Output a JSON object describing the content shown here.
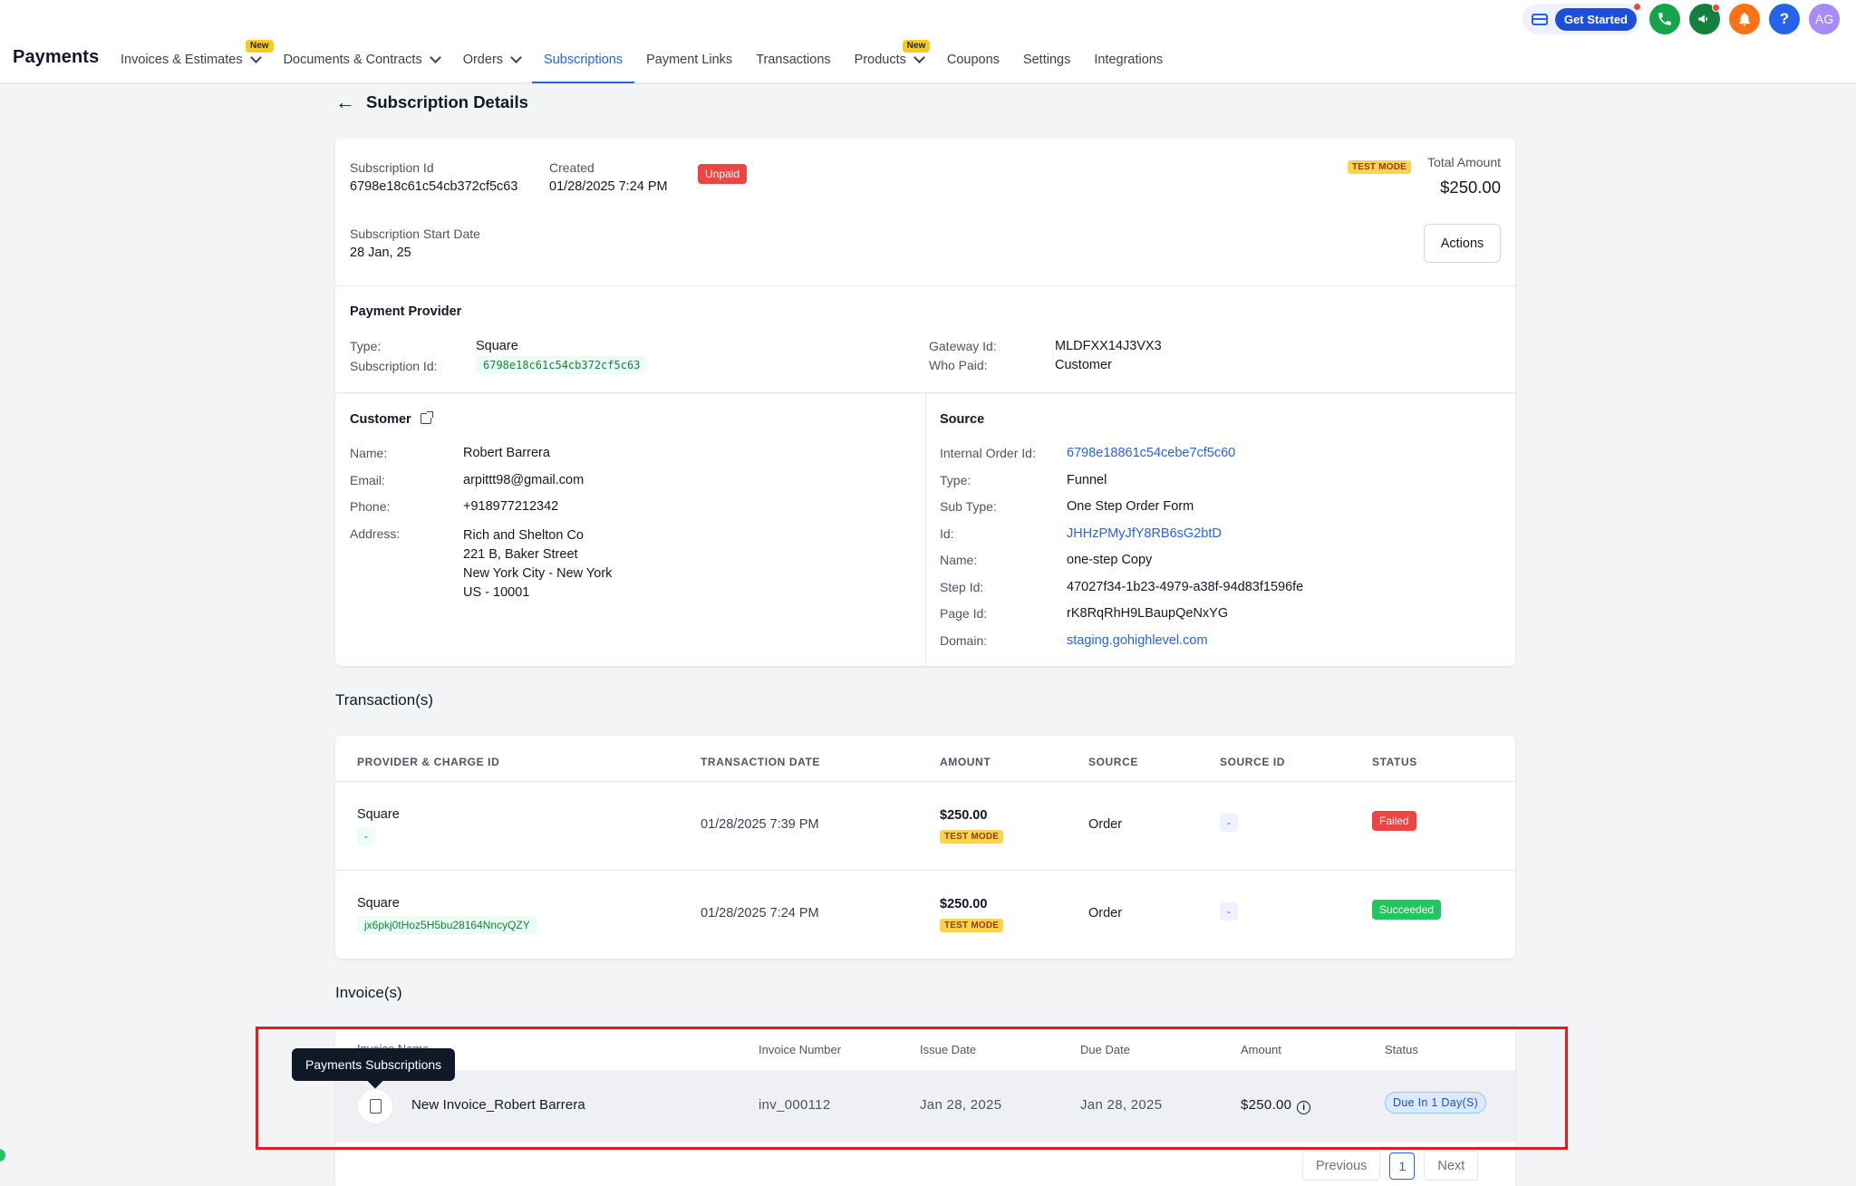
{
  "header": {
    "brand": "Payments",
    "nav": [
      {
        "label": "Invoices & Estimates",
        "badge": "New",
        "dropdown": true,
        "active": false
      },
      {
        "label": "Documents & Contracts",
        "badge": "",
        "dropdown": true,
        "active": false
      },
      {
        "label": "Orders",
        "badge": "",
        "dropdown": true,
        "active": false
      },
      {
        "label": "Subscriptions",
        "badge": "",
        "dropdown": false,
        "active": true
      },
      {
        "label": "Payment Links",
        "badge": "",
        "dropdown": false,
        "active": false
      },
      {
        "label": "Transactions",
        "badge": "",
        "dropdown": false,
        "active": false
      },
      {
        "label": "Products",
        "badge": "New",
        "dropdown": true,
        "active": false
      },
      {
        "label": "Coupons",
        "badge": "",
        "dropdown": false,
        "active": false
      },
      {
        "label": "Settings",
        "badge": "",
        "dropdown": false,
        "active": false
      },
      {
        "label": "Integrations",
        "badge": "",
        "dropdown": false,
        "active": false
      }
    ],
    "get_started": "Get Started",
    "help_glyph": "?",
    "avatar_initials": "AG",
    "icons": [
      "credit-card-icon",
      "phone-icon",
      "megaphone-icon",
      "bell-icon",
      "help-icon"
    ]
  },
  "page": {
    "back_glyph": "←",
    "title": "Subscription Details"
  },
  "summary": {
    "subscription_id_label": "Subscription Id",
    "subscription_id": "6798e18c61c54cb372cf5c63",
    "created_label": "Created",
    "created": "01/28/2025 7:24 PM",
    "status": "Unpaid",
    "test_mode": "TEST MODE",
    "total_amount_label": "Total Amount",
    "total_amount": "$250.00",
    "start_date_label": "Subscription Start Date",
    "start_date": "28 Jan, 25",
    "actions_label": "Actions"
  },
  "provider": {
    "heading": "Payment Provider",
    "type_label": "Type:",
    "type": "Square",
    "sub_id_label": "Subscription Id:",
    "sub_id": "6798e18c61c54cb372cf5c63",
    "gateway_label": "Gateway Id:",
    "gateway": "MLDFXX14J3VX3",
    "who_paid_label": "Who Paid:",
    "who_paid": "Customer"
  },
  "customer": {
    "heading": "Customer",
    "name_label": "Name:",
    "name": "Robert Barrera",
    "email_label": "Email:",
    "email": "arpittt98@gmail.com",
    "phone_label": "Phone:",
    "phone": "+918977212342",
    "address_label": "Address:",
    "address": [
      "Rich and Shelton Co",
      "221 B, Baker Street",
      "New York City - New York",
      "US - 10001"
    ]
  },
  "source": {
    "heading": "Source",
    "rows": [
      {
        "label": "Internal Order Id:",
        "value": "6798e18861c54cebe7cf5c60",
        "link": true
      },
      {
        "label": "Type:",
        "value": "Funnel",
        "link": false
      },
      {
        "label": "Sub Type:",
        "value": "One Step Order Form",
        "link": false
      },
      {
        "label": "Id:",
        "value": "JHHzPMyJfY8RB6sG2btD",
        "link": true
      },
      {
        "label": "Name:",
        "value": "one-step Copy",
        "link": false
      },
      {
        "label": "Step Id:",
        "value": "47027f34-1b23-4979-a38f-94d83f1596fe",
        "link": false
      },
      {
        "label": "Page Id:",
        "value": "rK8RqRhH9LBaupQeNxYG",
        "link": false
      },
      {
        "label": "Domain:",
        "value": "staging.gohighlevel.com",
        "link": true
      }
    ]
  },
  "transactions": {
    "title": "Transaction(s)",
    "columns": [
      "PROVIDER & CHARGE ID",
      "TRANSACTION DATE",
      "AMOUNT",
      "SOURCE",
      "SOURCE ID",
      "STATUS"
    ],
    "rows": [
      {
        "provider": "Square",
        "charge_id": "-",
        "date": "01/28/2025 7:39 PM",
        "amount": "$250.00",
        "test_mode": "TEST MODE",
        "source": "Order",
        "source_id": "-",
        "status": "Failed"
      },
      {
        "provider": "Square",
        "charge_id": "jx6pkj0tHoz5H5bu28164NncyQZY",
        "date": "01/28/2025 7:24 PM",
        "amount": "$250.00",
        "test_mode": "TEST MODE",
        "source": "Order",
        "source_id": "-",
        "status": "Succeeded"
      }
    ]
  },
  "invoices": {
    "title": "Invoice(s)",
    "columns": [
      "Invoice Name",
      "Invoice Number",
      "Issue Date",
      "Due Date",
      "Amount",
      "Status"
    ],
    "rows": [
      {
        "name": "New Invoice_Robert Barrera",
        "number": "inv_000112",
        "issue_date": "Jan 28, 2025",
        "due_date": "Jan 28, 2025",
        "amount": "$250.00",
        "status": "Due In 1 Day(S)"
      }
    ],
    "tooltip": "Payments Subscriptions",
    "pager": {
      "previous": "Previous",
      "current": "1",
      "next": "Next"
    }
  },
  "colors": {
    "accent": "#2563eb",
    "unpaid": "#ef4444",
    "failed": "#ef4444",
    "succeeded": "#22c55e",
    "test_mode": "#fcd34d",
    "highlight": "#e11d1d"
  }
}
